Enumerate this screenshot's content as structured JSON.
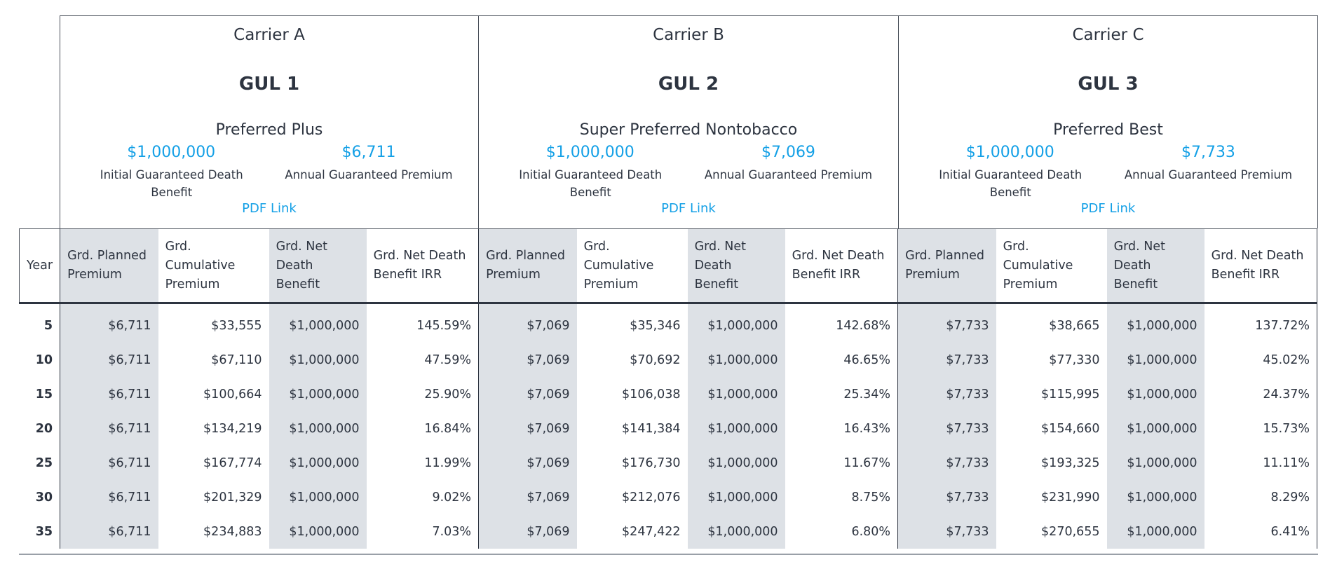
{
  "carriers": [
    {
      "carrier": "Carrier A",
      "product": "GUL 1",
      "rating": "Preferred Plus",
      "death_benefit": "$1,000,000",
      "death_benefit_label": "Initial Guaranteed Death Benefit",
      "premium": "$6,711",
      "premium_label": "Annual Guaranteed Premium",
      "link": "PDF Link"
    },
    {
      "carrier": "Carrier B",
      "product": "GUL 2",
      "rating": "Super Preferred Nontobacco",
      "death_benefit": "$1,000,000",
      "death_benefit_label": "Initial Guaranteed Death Benefit",
      "premium": "$7,069",
      "premium_label": "Annual Guaranteed Premium",
      "link": "PDF Link"
    },
    {
      "carrier": "Carrier C",
      "product": "GUL 3",
      "rating": "Preferred Best",
      "death_benefit": "$1,000,000",
      "death_benefit_label": "Initial Guaranteed Death Benefit",
      "premium": "$7,733",
      "premium_label": "Annual Guaranteed Premium",
      "link": "PDF Link"
    }
  ],
  "table": {
    "year_header": "Year",
    "columns": [
      "Grd. Planned Premium",
      "Grd. Cumulative Premium",
      "Grd. Net Death Benefit",
      "Grd. Net Death Benefit IRR"
    ],
    "rows": [
      [
        "5",
        "$6,711",
        "$33,555",
        "$1,000,000",
        "145.59%",
        "$7,069",
        "$35,346",
        "$1,000,000",
        "142.68%",
        "$7,733",
        "$38,665",
        "$1,000,000",
        "137.72%"
      ],
      [
        "10",
        "$6,711",
        "$67,110",
        "$1,000,000",
        "47.59%",
        "$7,069",
        "$70,692",
        "$1,000,000",
        "46.65%",
        "$7,733",
        "$77,330",
        "$1,000,000",
        "45.02%"
      ],
      [
        "15",
        "$6,711",
        "$100,664",
        "$1,000,000",
        "25.90%",
        "$7,069",
        "$106,038",
        "$1,000,000",
        "25.34%",
        "$7,733",
        "$115,995",
        "$1,000,000",
        "24.37%"
      ],
      [
        "20",
        "$6,711",
        "$134,219",
        "$1,000,000",
        "16.84%",
        "$7,069",
        "$141,384",
        "$1,000,000",
        "16.43%",
        "$7,733",
        "$154,660",
        "$1,000,000",
        "15.73%"
      ],
      [
        "25",
        "$6,711",
        "$167,774",
        "$1,000,000",
        "11.99%",
        "$7,069",
        "$176,730",
        "$1,000,000",
        "11.67%",
        "$7,733",
        "$193,325",
        "$1,000,000",
        "11.11%"
      ],
      [
        "30",
        "$6,711",
        "$201,329",
        "$1,000,000",
        "9.02%",
        "$7,069",
        "$212,076",
        "$1,000,000",
        "8.75%",
        "$7,733",
        "$231,990",
        "$1,000,000",
        "8.29%"
      ],
      [
        "35",
        "$6,711",
        "$234,883",
        "$1,000,000",
        "7.03%",
        "$7,069",
        "$247,422",
        "$1,000,000",
        "6.80%",
        "$7,733",
        "$270,655",
        "$1,000,000",
        "6.41%"
      ]
    ]
  }
}
